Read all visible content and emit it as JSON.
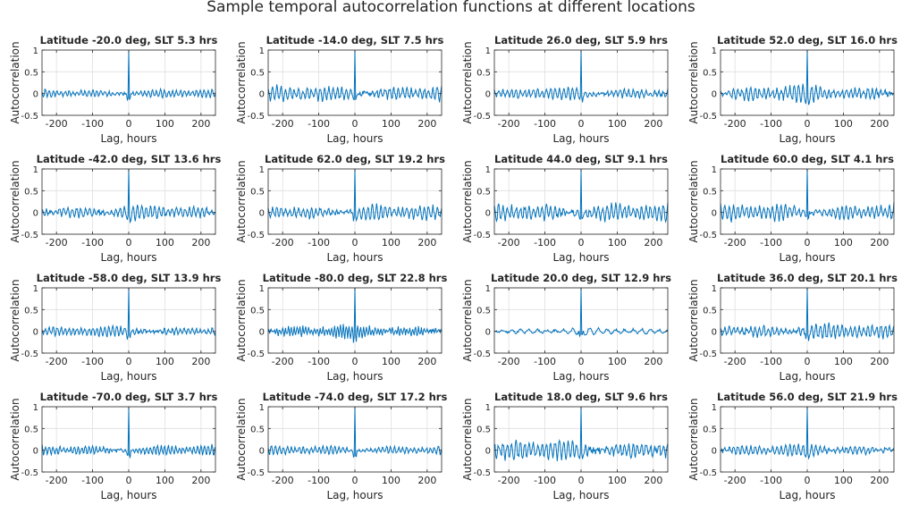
{
  "figure": {
    "title": "Sample temporal autocorrelation functions at different locations",
    "line_color": "#0072BD",
    "axis_color": "#262626",
    "grid_color": "#dfdfdf"
  },
  "chart_data": [
    {
      "type": "line",
      "title": "Latitude -20.0 deg, SLT 5.3 hrs",
      "xlabel": "Lag, hours",
      "ylabel": "Autocorrelation",
      "xlim": [
        -240,
        240
      ],
      "ylim": [
        -0.5,
        1
      ],
      "xticks": [
        -200,
        -100,
        0,
        100,
        200
      ],
      "yticks": [
        -0.5,
        0,
        0.5,
        1
      ],
      "grid": true,
      "series": [
        {
          "name": "acf",
          "amplitude": 0.1,
          "seed": 1,
          "period": 11
        }
      ]
    },
    {
      "type": "line",
      "title": "Latitude -14.0 deg, SLT 7.5 hrs",
      "xlabel": "Lag, hours",
      "ylabel": "Autocorrelation",
      "xlim": [
        -240,
        240
      ],
      "ylim": [
        -0.5,
        1
      ],
      "xticks": [
        -200,
        -100,
        0,
        100,
        200
      ],
      "yticks": [
        -0.5,
        0,
        0.5,
        1
      ],
      "grid": true,
      "series": [
        {
          "name": "acf",
          "amplitude": 0.18,
          "seed": 2,
          "period": 12
        }
      ]
    },
    {
      "type": "line",
      "title": "Latitude 26.0 deg, SLT 5.9 hrs",
      "xlabel": "Lag, hours",
      "ylabel": "Autocorrelation",
      "xlim": [
        -240,
        240
      ],
      "ylim": [
        -0.5,
        1
      ],
      "xticks": [
        -200,
        -100,
        0,
        100,
        200
      ],
      "yticks": [
        -0.5,
        0,
        0.5,
        1
      ],
      "grid": true,
      "series": [
        {
          "name": "acf",
          "amplitude": 0.14,
          "seed": 3,
          "period": 12
        }
      ]
    },
    {
      "type": "line",
      "title": "Latitude 52.0 deg, SLT 16.0 hrs",
      "xlabel": "Lag, hours",
      "ylabel": "Autocorrelation",
      "xlim": [
        -240,
        240
      ],
      "ylim": [
        -0.5,
        1
      ],
      "xticks": [
        -200,
        -100,
        0,
        100,
        200
      ],
      "yticks": [
        -0.5,
        0,
        0.5,
        1
      ],
      "grid": true,
      "series": [
        {
          "name": "acf",
          "amplitude": 0.2,
          "seed": 4,
          "period": 12
        }
      ]
    },
    {
      "type": "line",
      "title": "Latitude -42.0 deg, SLT 13.6 hrs",
      "xlabel": "Lag, hours",
      "ylabel": "Autocorrelation",
      "xlim": [
        -240,
        240
      ],
      "ylim": [
        -0.5,
        1
      ],
      "xticks": [
        -200,
        -100,
        0,
        100,
        200
      ],
      "yticks": [
        -0.5,
        0,
        0.5,
        1
      ],
      "grid": true,
      "series": [
        {
          "name": "acf",
          "amplitude": 0.17,
          "seed": 5,
          "period": 12
        }
      ]
    },
    {
      "type": "line",
      "title": "Latitude 62.0 deg, SLT 19.2 hrs",
      "xlabel": "Lag, hours",
      "ylabel": "Autocorrelation",
      "xlim": [
        -240,
        240
      ],
      "ylim": [
        -0.5,
        1
      ],
      "xticks": [
        -200,
        -100,
        0,
        100,
        200
      ],
      "yticks": [
        -0.5,
        0,
        0.5,
        1
      ],
      "grid": true,
      "series": [
        {
          "name": "acf",
          "amplitude": 0.18,
          "seed": 6,
          "period": 12
        }
      ]
    },
    {
      "type": "line",
      "title": "Latitude 44.0 deg, SLT 9.1 hrs",
      "xlabel": "Lag, hours",
      "ylabel": "Autocorrelation",
      "xlim": [
        -240,
        240
      ],
      "ylim": [
        -0.5,
        1
      ],
      "xticks": [
        -200,
        -100,
        0,
        100,
        200
      ],
      "yticks": [
        -0.5,
        0,
        0.5,
        1
      ],
      "grid": true,
      "series": [
        {
          "name": "acf",
          "amplitude": 0.22,
          "seed": 7,
          "period": 12
        }
      ]
    },
    {
      "type": "line",
      "title": "Latitude 60.0 deg, SLT 4.1 hrs",
      "xlabel": "Lag, hours",
      "ylabel": "Autocorrelation",
      "xlim": [
        -240,
        240
      ],
      "ylim": [
        -0.5,
        1
      ],
      "xticks": [
        -200,
        -100,
        0,
        100,
        200
      ],
      "yticks": [
        -0.5,
        0,
        0.5,
        1
      ],
      "grid": true,
      "series": [
        {
          "name": "acf",
          "amplitude": 0.2,
          "seed": 8,
          "period": 12
        }
      ]
    },
    {
      "type": "line",
      "title": "Latitude -58.0 deg, SLT 13.9 hrs",
      "xlabel": "Lag, hours",
      "ylabel": "Autocorrelation",
      "xlim": [
        -240,
        240
      ],
      "ylim": [
        -0.5,
        1
      ],
      "xticks": [
        -200,
        -100,
        0,
        100,
        200
      ],
      "yticks": [
        -0.5,
        0,
        0.5,
        1
      ],
      "grid": true,
      "series": [
        {
          "name": "acf",
          "amplitude": 0.12,
          "seed": 9,
          "period": 11
        }
      ]
    },
    {
      "type": "line",
      "title": "Latitude -80.0 deg, SLT 22.8 hrs",
      "xlabel": "Lag, hours",
      "ylabel": "Autocorrelation",
      "xlim": [
        -240,
        240
      ],
      "ylim": [
        -0.5,
        1
      ],
      "xticks": [
        -200,
        -100,
        0,
        100,
        200
      ],
      "yticks": [
        -0.5,
        0,
        0.5,
        1
      ],
      "grid": true,
      "series": [
        {
          "name": "acf",
          "amplitude": 0.16,
          "seed": 10,
          "period": 8
        }
      ]
    },
    {
      "type": "line",
      "title": "Latitude 20.0 deg, SLT 12.9 hrs",
      "xlabel": "Lag, hours",
      "ylabel": "Autocorrelation",
      "xlim": [
        -240,
        240
      ],
      "ylim": [
        -0.5,
        1
      ],
      "xticks": [
        -200,
        -100,
        0,
        100,
        200
      ],
      "yticks": [
        -0.5,
        0,
        0.5,
        1
      ],
      "grid": true,
      "series": [
        {
          "name": "acf",
          "amplitude": 0.08,
          "seed": 11,
          "period": 24
        }
      ]
    },
    {
      "type": "line",
      "title": "Latitude 36.0 deg, SLT 20.1 hrs",
      "xlabel": "Lag, hours",
      "ylabel": "Autocorrelation",
      "xlim": [
        -240,
        240
      ],
      "ylim": [
        -0.5,
        1
      ],
      "xticks": [
        -200,
        -100,
        0,
        100,
        200
      ],
      "yticks": [
        -0.5,
        0,
        0.5,
        1
      ],
      "grid": true,
      "series": [
        {
          "name": "acf",
          "amplitude": 0.18,
          "seed": 12,
          "period": 12
        }
      ]
    },
    {
      "type": "line",
      "title": "Latitude -70.0 deg, SLT 3.7 hrs",
      "xlabel": "Lag, hours",
      "ylabel": "Autocorrelation",
      "xlim": [
        -240,
        240
      ],
      "ylim": [
        -0.5,
        1
      ],
      "xticks": [
        -200,
        -100,
        0,
        100,
        200
      ],
      "yticks": [
        -0.5,
        0,
        0.5,
        1
      ],
      "grid": true,
      "series": [
        {
          "name": "acf",
          "amplitude": 0.12,
          "seed": 13,
          "period": 10
        }
      ]
    },
    {
      "type": "line",
      "title": "Latitude -74.0 deg, SLT 17.2 hrs",
      "xlabel": "Lag, hours",
      "ylabel": "Autocorrelation",
      "xlim": [
        -240,
        240
      ],
      "ylim": [
        -0.5,
        1
      ],
      "xticks": [
        -200,
        -100,
        0,
        100,
        200
      ],
      "yticks": [
        -0.5,
        0,
        0.5,
        1
      ],
      "grid": true,
      "series": [
        {
          "name": "acf",
          "amplitude": 0.1,
          "seed": 14,
          "period": 11
        }
      ]
    },
    {
      "type": "line",
      "title": "Latitude 18.0 deg, SLT 9.6 hrs",
      "xlabel": "Lag, hours",
      "ylabel": "Autocorrelation",
      "xlim": [
        -240,
        240
      ],
      "ylim": [
        -0.5,
        1
      ],
      "xticks": [
        -200,
        -100,
        0,
        100,
        200
      ],
      "yticks": [
        -0.5,
        0,
        0.5,
        1
      ],
      "grid": true,
      "series": [
        {
          "name": "acf",
          "amplitude": 0.24,
          "seed": 15,
          "period": 12
        }
      ]
    },
    {
      "type": "line",
      "title": "Latitude 56.0 deg, SLT 21.9 hrs",
      "xlabel": "Lag, hours",
      "ylabel": "Autocorrelation",
      "xlim": [
        -240,
        240
      ],
      "ylim": [
        -0.5,
        1
      ],
      "xticks": [
        -200,
        -100,
        0,
        100,
        200
      ],
      "yticks": [
        -0.5,
        0,
        0.5,
        1
      ],
      "grid": true,
      "series": [
        {
          "name": "acf",
          "amplitude": 0.14,
          "seed": 16,
          "period": 12
        }
      ]
    }
  ]
}
